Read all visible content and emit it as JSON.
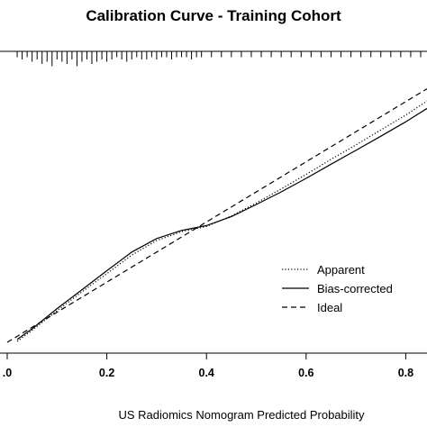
{
  "chart_data": {
    "type": "line",
    "title": "Calibration Curve - Training Cohort",
    "xlabel": "US Radiomics Nomogram Predicted Probability",
    "ylabel": "",
    "xlim": [
      0.0,
      0.85
    ],
    "ylim": [
      0.0,
      0.85
    ],
    "x_tick_labels": [
      ".0",
      "0.2",
      "0.4",
      "0.6",
      "0.8"
    ],
    "x_tick_values": [
      0.0,
      0.2,
      0.4,
      0.6,
      0.8
    ],
    "legend_position": "lower-right",
    "rug_position": "top",
    "series": [
      {
        "name": "Apparent",
        "style": "dotted",
        "x": [
          0.02,
          0.05,
          0.1,
          0.15,
          0.2,
          0.25,
          0.3,
          0.35,
          0.4,
          0.45,
          0.5,
          0.55,
          0.6,
          0.65,
          0.7,
          0.75,
          0.8,
          0.85
        ],
        "y": [
          0.003,
          0.04,
          0.105,
          0.168,
          0.228,
          0.29,
          0.338,
          0.368,
          0.385,
          0.42,
          0.463,
          0.51,
          0.558,
          0.608,
          0.656,
          0.706,
          0.755,
          0.81
        ]
      },
      {
        "name": "Bias-corrected",
        "style": "solid",
        "x": [
          0.02,
          0.05,
          0.1,
          0.15,
          0.2,
          0.25,
          0.3,
          0.35,
          0.4,
          0.45,
          0.5,
          0.55,
          0.6,
          0.65,
          0.7,
          0.75,
          0.8,
          0.85
        ],
        "y": [
          0.01,
          0.045,
          0.112,
          0.175,
          0.238,
          0.3,
          0.345,
          0.372,
          0.388,
          0.418,
          0.458,
          0.5,
          0.545,
          0.592,
          0.638,
          0.685,
          0.733,
          0.785
        ]
      },
      {
        "name": "Ideal",
        "style": "dashed",
        "x": [
          0.0,
          0.85
        ],
        "y": [
          0.0,
          0.85
        ]
      }
    ],
    "rug_x": [
      0.02,
      0.03,
      0.04,
      0.05,
      0.06,
      0.07,
      0.08,
      0.09,
      0.1,
      0.11,
      0.12,
      0.13,
      0.14,
      0.15,
      0.16,
      0.17,
      0.18,
      0.19,
      0.2,
      0.21,
      0.22,
      0.23,
      0.24,
      0.25,
      0.26,
      0.27,
      0.28,
      0.29,
      0.3,
      0.31,
      0.32,
      0.33,
      0.34,
      0.35,
      0.36,
      0.37,
      0.38,
      0.39,
      0.41,
      0.43,
      0.45,
      0.47,
      0.49,
      0.51,
      0.53,
      0.55,
      0.57,
      0.59,
      0.61,
      0.63,
      0.65,
      0.67,
      0.69,
      0.71,
      0.73,
      0.75,
      0.77,
      0.79,
      0.81,
      0.83
    ],
    "rug_counts": [
      1,
      2,
      1,
      3,
      2,
      4,
      3,
      5,
      2,
      3,
      4,
      2,
      5,
      3,
      2,
      4,
      3,
      2,
      3,
      2,
      1,
      2,
      3,
      2,
      1,
      2,
      2,
      1,
      2,
      1,
      1,
      2,
      1,
      1,
      1,
      2,
      1,
      1,
      1,
      1,
      1,
      1,
      1,
      1,
      1,
      1,
      1,
      1,
      1,
      1,
      1,
      1,
      1,
      1,
      1,
      1,
      1,
      1,
      1,
      1
    ]
  }
}
